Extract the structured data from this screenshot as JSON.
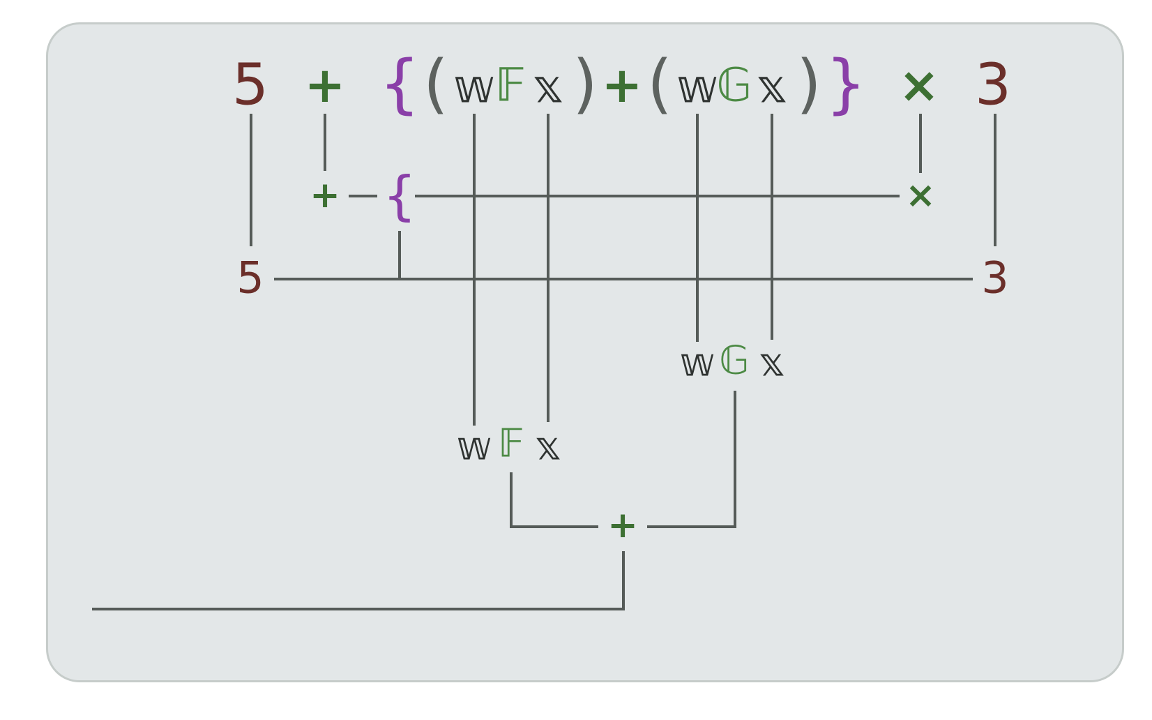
{
  "expression": {
    "five": "5",
    "plus": "+",
    "lbrace": "{",
    "lparen1": "(",
    "w1": "𝕨",
    "F1": "𝔽",
    "x1": "𝕩",
    "rparen1": ")",
    "plus_mid": "+",
    "lparen2": "(",
    "w2": "𝕨",
    "G1": "𝔾",
    "x2": "𝕩",
    "rparen2": ")",
    "rbrace": "}",
    "times": "×",
    "three": "3"
  },
  "level1": {
    "plus": "+",
    "lbrace": "{",
    "times": "×"
  },
  "level2": {
    "five": "5",
    "three": "3"
  },
  "train_g": {
    "w": "𝕨",
    "G": "𝔾",
    "x": "𝕩"
  },
  "train_f": {
    "w": "𝕨",
    "F": "𝔽",
    "x": "𝕩"
  },
  "combine": {
    "plus": "+"
  },
  "colors": {
    "panel_bg": "#e3e7e8",
    "panel_border": "#c6ccca",
    "number": "#6b2f2a",
    "operator": "#3d7033",
    "brace": "#8a3fa8",
    "paren": "#5d625f",
    "variable": "#2f3331",
    "function": "#4c8a44",
    "line": "#555b58"
  }
}
